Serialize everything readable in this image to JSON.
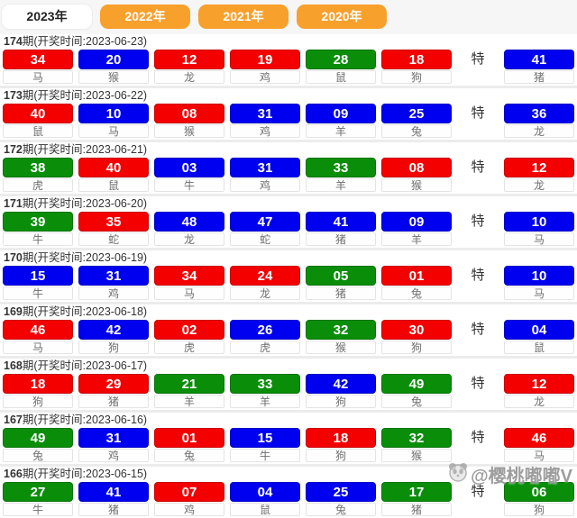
{
  "tabs": [
    {
      "label": "2023年",
      "active": true
    },
    {
      "label": "2022年",
      "active": false
    },
    {
      "label": "2021年",
      "active": false
    },
    {
      "label": "2020年",
      "active": false
    }
  ],
  "labels": {
    "special": "特",
    "header_prefix": "期(开奖时间:",
    "header_suffix": ")"
  },
  "colors": {
    "red": "#f40000",
    "blue": "#0000f0",
    "green": "#0a8e0a",
    "tab_orange": "#f8a02c"
  },
  "rows": [
    {
      "period": "174",
      "date": "2023-06-23",
      "numbers": [
        {
          "value": "34",
          "color": "red",
          "zodiac": "马"
        },
        {
          "value": "20",
          "color": "blue",
          "zodiac": "猴"
        },
        {
          "value": "12",
          "color": "red",
          "zodiac": "龙"
        },
        {
          "value": "19",
          "color": "red",
          "zodiac": "鸡"
        },
        {
          "value": "28",
          "color": "green",
          "zodiac": "鼠"
        },
        {
          "value": "18",
          "color": "red",
          "zodiac": "狗"
        }
      ],
      "special": {
        "value": "41",
        "color": "blue",
        "zodiac": "猪"
      }
    },
    {
      "period": "173",
      "date": "2023-06-22",
      "numbers": [
        {
          "value": "40",
          "color": "red",
          "zodiac": "鼠"
        },
        {
          "value": "10",
          "color": "blue",
          "zodiac": "马"
        },
        {
          "value": "08",
          "color": "red",
          "zodiac": "猴"
        },
        {
          "value": "31",
          "color": "blue",
          "zodiac": "鸡"
        },
        {
          "value": "09",
          "color": "blue",
          "zodiac": "羊"
        },
        {
          "value": "25",
          "color": "blue",
          "zodiac": "兔"
        }
      ],
      "special": {
        "value": "36",
        "color": "blue",
        "zodiac": "龙"
      }
    },
    {
      "period": "172",
      "date": "2023-06-21",
      "numbers": [
        {
          "value": "38",
          "color": "green",
          "zodiac": "虎"
        },
        {
          "value": "40",
          "color": "red",
          "zodiac": "鼠"
        },
        {
          "value": "03",
          "color": "blue",
          "zodiac": "牛"
        },
        {
          "value": "31",
          "color": "blue",
          "zodiac": "鸡"
        },
        {
          "value": "33",
          "color": "green",
          "zodiac": "羊"
        },
        {
          "value": "08",
          "color": "red",
          "zodiac": "猴"
        }
      ],
      "special": {
        "value": "12",
        "color": "red",
        "zodiac": "龙"
      }
    },
    {
      "period": "171",
      "date": "2023-06-20",
      "numbers": [
        {
          "value": "39",
          "color": "green",
          "zodiac": "牛"
        },
        {
          "value": "35",
          "color": "red",
          "zodiac": "蛇"
        },
        {
          "value": "48",
          "color": "blue",
          "zodiac": "龙"
        },
        {
          "value": "47",
          "color": "blue",
          "zodiac": "蛇"
        },
        {
          "value": "41",
          "color": "blue",
          "zodiac": "猪"
        },
        {
          "value": "09",
          "color": "blue",
          "zodiac": "羊"
        }
      ],
      "special": {
        "value": "10",
        "color": "blue",
        "zodiac": "马"
      }
    },
    {
      "period": "170",
      "date": "2023-06-19",
      "numbers": [
        {
          "value": "15",
          "color": "blue",
          "zodiac": "牛"
        },
        {
          "value": "31",
          "color": "blue",
          "zodiac": "鸡"
        },
        {
          "value": "34",
          "color": "red",
          "zodiac": "马"
        },
        {
          "value": "24",
          "color": "red",
          "zodiac": "龙"
        },
        {
          "value": "05",
          "color": "green",
          "zodiac": "猪"
        },
        {
          "value": "01",
          "color": "red",
          "zodiac": "兔"
        }
      ],
      "special": {
        "value": "10",
        "color": "blue",
        "zodiac": "马"
      }
    },
    {
      "period": "169",
      "date": "2023-06-18",
      "numbers": [
        {
          "value": "46",
          "color": "red",
          "zodiac": "马"
        },
        {
          "value": "42",
          "color": "blue",
          "zodiac": "狗"
        },
        {
          "value": "02",
          "color": "red",
          "zodiac": "虎"
        },
        {
          "value": "26",
          "color": "blue",
          "zodiac": "虎"
        },
        {
          "value": "32",
          "color": "green",
          "zodiac": "猴"
        },
        {
          "value": "30",
          "color": "red",
          "zodiac": "狗"
        }
      ],
      "special": {
        "value": "04",
        "color": "blue",
        "zodiac": "鼠"
      }
    },
    {
      "period": "168",
      "date": "2023-06-17",
      "numbers": [
        {
          "value": "18",
          "color": "red",
          "zodiac": "狗"
        },
        {
          "value": "29",
          "color": "red",
          "zodiac": "猪"
        },
        {
          "value": "21",
          "color": "green",
          "zodiac": "羊"
        },
        {
          "value": "33",
          "color": "green",
          "zodiac": "羊"
        },
        {
          "value": "42",
          "color": "blue",
          "zodiac": "狗"
        },
        {
          "value": "49",
          "color": "green",
          "zodiac": "兔"
        }
      ],
      "special": {
        "value": "12",
        "color": "red",
        "zodiac": "龙"
      }
    },
    {
      "period": "167",
      "date": "2023-06-16",
      "numbers": [
        {
          "value": "49",
          "color": "green",
          "zodiac": "兔"
        },
        {
          "value": "31",
          "color": "blue",
          "zodiac": "鸡"
        },
        {
          "value": "01",
          "color": "red",
          "zodiac": "兔"
        },
        {
          "value": "15",
          "color": "blue",
          "zodiac": "牛"
        },
        {
          "value": "18",
          "color": "red",
          "zodiac": "狗"
        },
        {
          "value": "32",
          "color": "green",
          "zodiac": "猴"
        }
      ],
      "special": {
        "value": "46",
        "color": "red",
        "zodiac": "马"
      }
    },
    {
      "period": "166",
      "date": "2023-06-15",
      "numbers": [
        {
          "value": "27",
          "color": "green",
          "zodiac": "牛"
        },
        {
          "value": "41",
          "color": "blue",
          "zodiac": "猪"
        },
        {
          "value": "07",
          "color": "red",
          "zodiac": "鸡"
        },
        {
          "value": "04",
          "color": "blue",
          "zodiac": "鼠"
        },
        {
          "value": "25",
          "color": "blue",
          "zodiac": "兔"
        },
        {
          "value": "17",
          "color": "green",
          "zodiac": "猪"
        }
      ],
      "special": {
        "value": "06",
        "color": "green",
        "zodiac": "狗"
      }
    }
  ],
  "watermark": {
    "handle": "@樱桃嘟嘟V",
    "icon": "panda-icon"
  }
}
